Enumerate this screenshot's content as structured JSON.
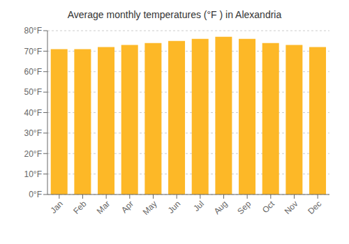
{
  "chart_data": {
    "type": "bar",
    "title": "Average monthly temperatures (°F ) in Alexandria",
    "categories": [
      "Jan",
      "Feb",
      "Mar",
      "Apr",
      "May",
      "Jun",
      "Jul",
      "Aug",
      "Sep",
      "Oct",
      "Nov",
      "Dec"
    ],
    "values": [
      71,
      71,
      72,
      73,
      74,
      75,
      76,
      77,
      76,
      74,
      73,
      72
    ],
    "color": "#FDB827",
    "ylim": [
      0,
      80
    ],
    "yticks": [
      {
        "value": 0,
        "label": "0°F"
      },
      {
        "value": 10,
        "label": "10°F"
      },
      {
        "value": 20,
        "label": "20°F"
      },
      {
        "value": 30,
        "label": "30°F"
      },
      {
        "value": 40,
        "label": "40°F"
      },
      {
        "value": 50,
        "label": "50°F"
      },
      {
        "value": 60,
        "label": "60°F"
      },
      {
        "value": 70,
        "label": "70°F"
      },
      {
        "value": 80,
        "label": "80°F"
      }
    ],
    "grid": true
  }
}
